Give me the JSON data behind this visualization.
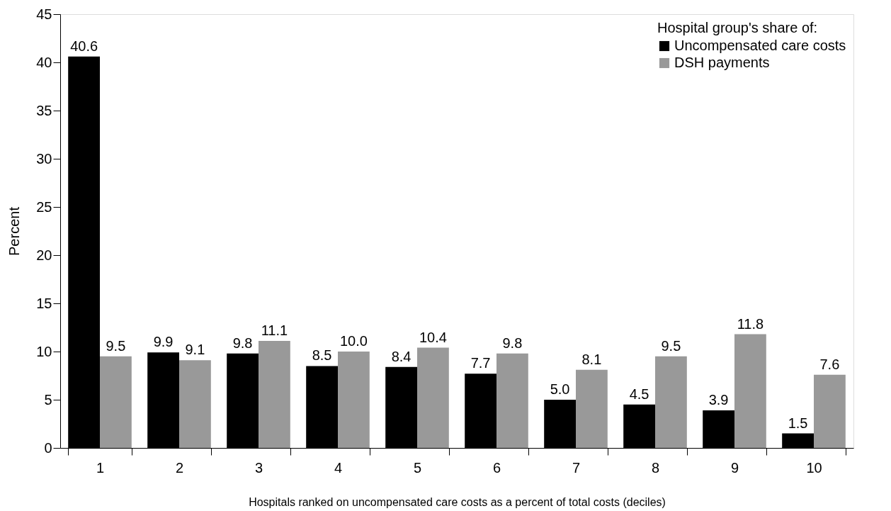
{
  "chart_data": {
    "type": "bar",
    "xlabel": "Hospitals ranked on uncompensated care costs as a percent of total costs (deciles)",
    "ylabel": "Percent",
    "legend_title": "Hospital group's share of:",
    "categories": [
      "1",
      "2",
      "3",
      "4",
      "5",
      "6",
      "7",
      "8",
      "9",
      "10"
    ],
    "series": [
      {
        "name": "Uncompensated care costs",
        "color": "#000000",
        "values": [
          40.6,
          9.9,
          9.8,
          8.5,
          8.4,
          7.7,
          5.0,
          4.5,
          3.9,
          1.5
        ],
        "value_labels": [
          "40.6",
          "9.9",
          "9.8",
          "8.5",
          "8.4",
          "7.7",
          "5.0",
          "4.5",
          "3.9",
          "1.5"
        ]
      },
      {
        "name": "DSH payments",
        "color": "#999999",
        "values": [
          9.5,
          9.1,
          11.1,
          10.0,
          10.4,
          9.8,
          8.1,
          9.5,
          11.8,
          7.6
        ],
        "value_labels": [
          "9.5",
          "9.1",
          "11.1",
          "10.0",
          "10.4",
          "9.8",
          "8.1",
          "9.5",
          "11.8",
          "7.6"
        ]
      }
    ],
    "ylim": [
      0,
      45
    ],
    "yticks": [
      0,
      5,
      10,
      15,
      20,
      25,
      30,
      35,
      40,
      45
    ],
    "grid": false,
    "legend": "top right"
  }
}
